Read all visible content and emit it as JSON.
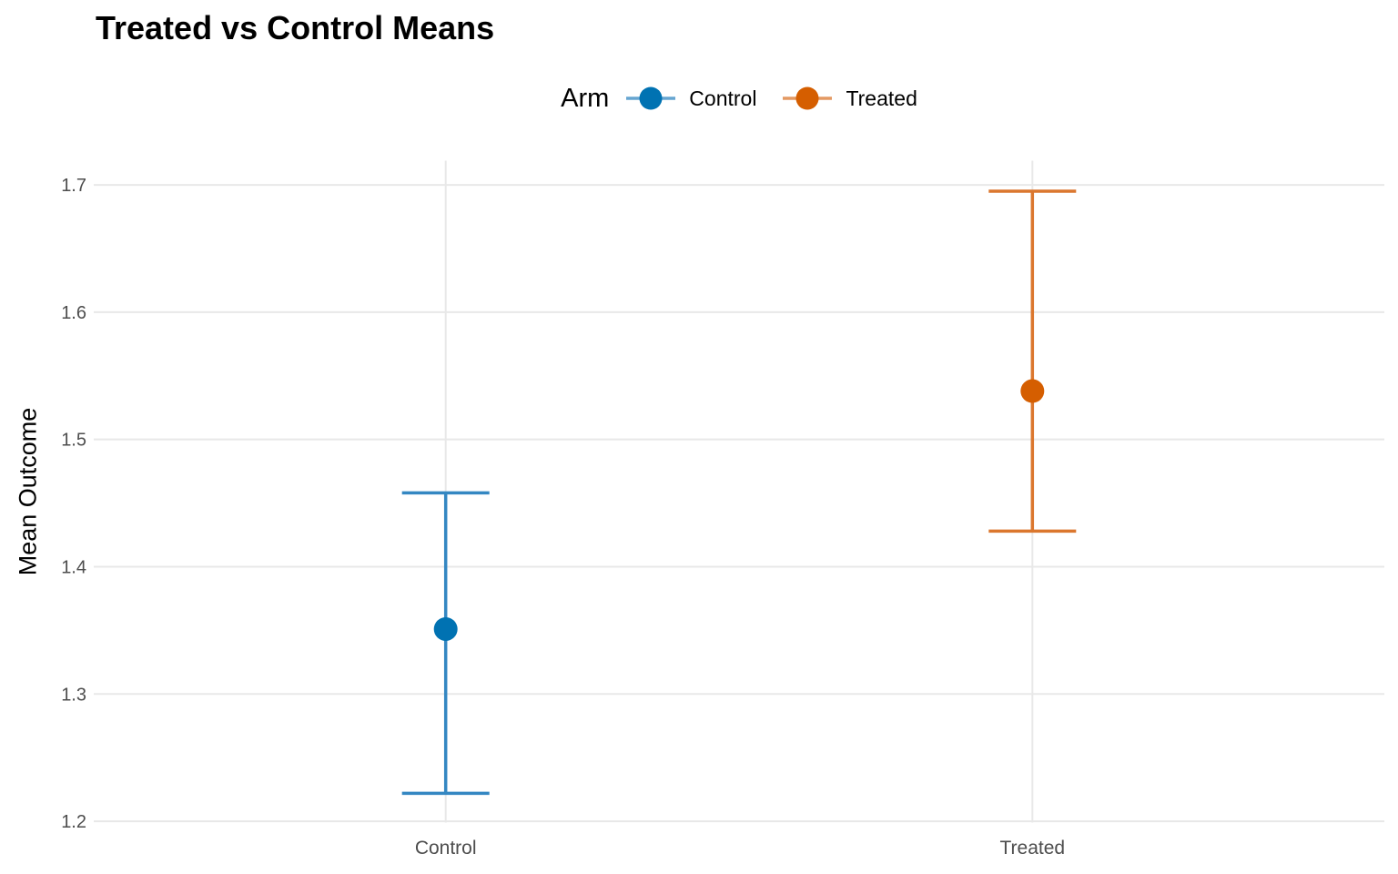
{
  "chart_data": {
    "type": "scatter",
    "subtype": "pointrange",
    "title": "Treated vs Control Means",
    "xlabel": "",
    "ylabel": "Mean Outcome",
    "categories": [
      "Control",
      "Treated"
    ],
    "series": [
      {
        "name": "Control",
        "mean": 1.351,
        "lower": 1.222,
        "upper": 1.458,
        "color": "#0072B2",
        "line_color": "#3487C2"
      },
      {
        "name": "Treated",
        "mean": 1.538,
        "lower": 1.428,
        "upper": 1.695,
        "color": "#D55E00",
        "line_color": "#DB772E"
      }
    ],
    "ylim": [
      1.199,
      1.719
    ],
    "yticks": [
      1.2,
      1.3,
      1.4,
      1.5,
      1.6,
      1.7
    ],
    "ytick_labels": [
      "1.2",
      "1.3",
      "1.4",
      "1.5",
      "1.6",
      "1.7"
    ],
    "grid": "major",
    "grid_color": "#E8E8E8",
    "axis_text_color": "#4D4D4D",
    "legend": {
      "title": "Arm",
      "position": "top"
    }
  }
}
